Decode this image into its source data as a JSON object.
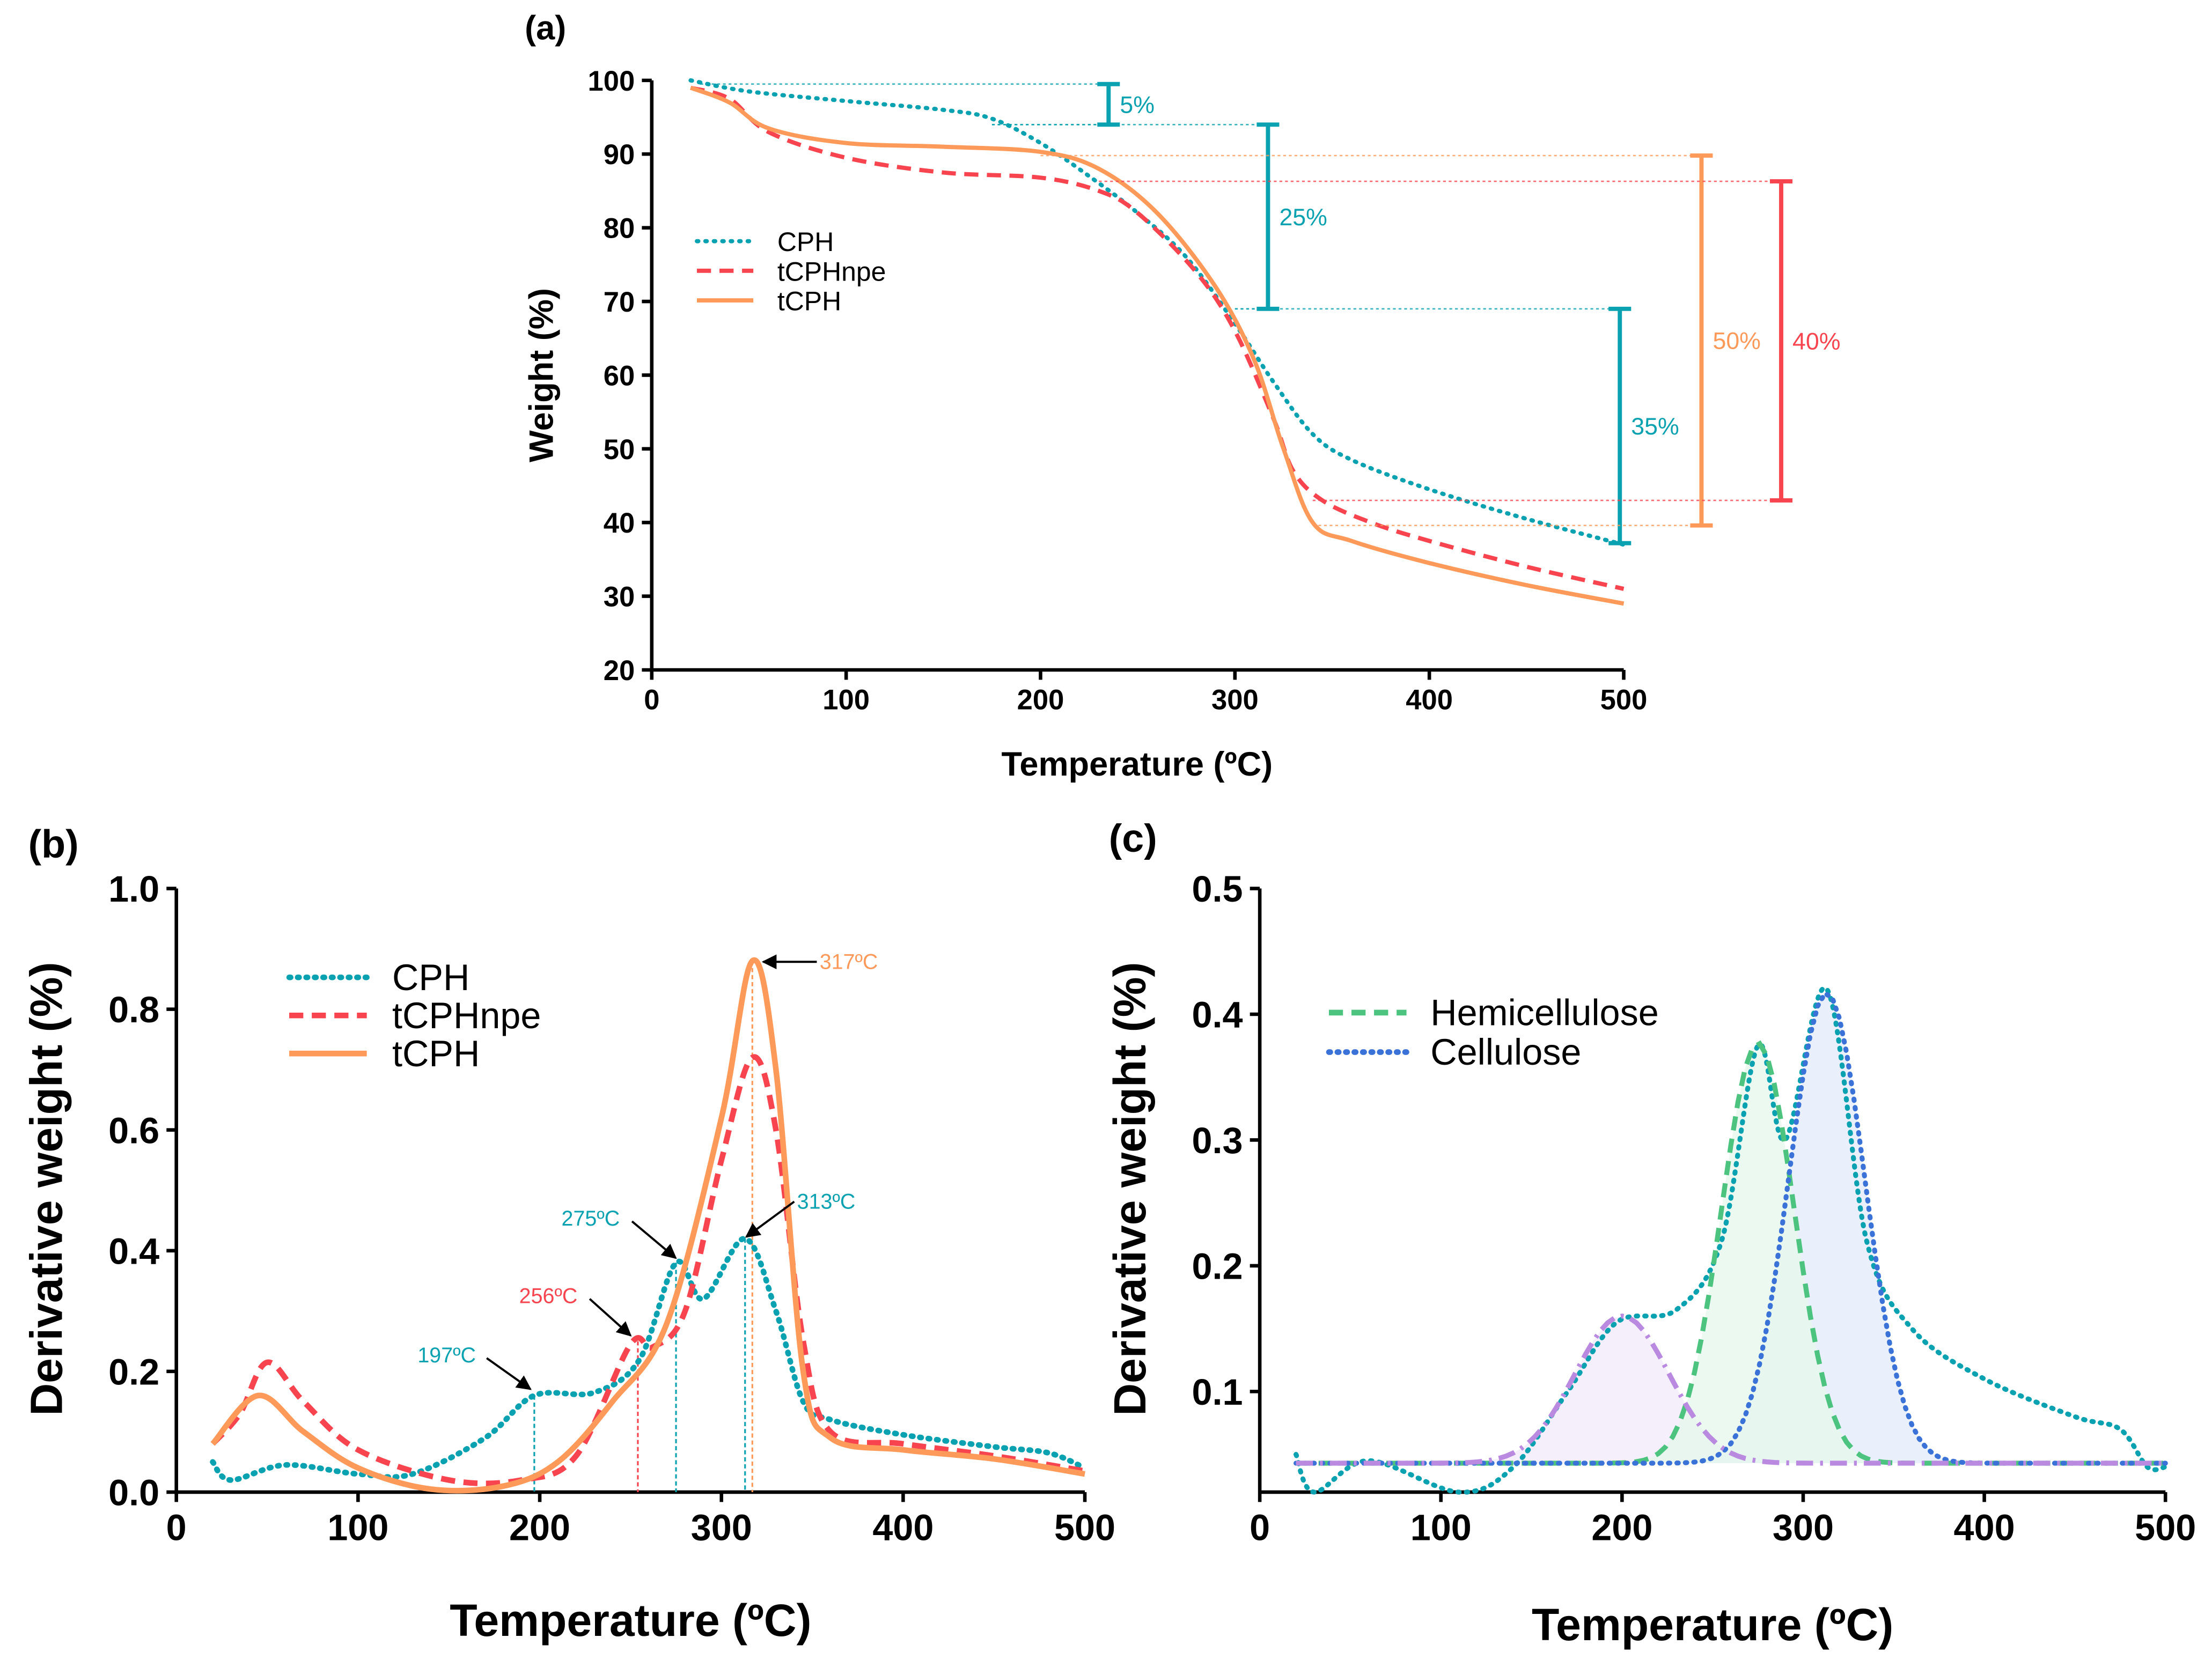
{
  "colors": {
    "cph": "#0aa2b0",
    "tcphnpe": "#f7444e",
    "tcph": "#fd9a5a",
    "hemi": "#4cc47f",
    "cell": "#3a72d8",
    "lignin": "#b98ae0"
  },
  "chart_data": [
    {
      "panel": "(a)",
      "type": "line",
      "xlabel": "Temperature (ºC)",
      "ylabel": "Weight (%)",
      "xlim": [
        0,
        500
      ],
      "ylim": [
        20,
        100
      ],
      "xticks": [
        0,
        100,
        200,
        300,
        400,
        500
      ],
      "yticks": [
        20,
        30,
        40,
        50,
        60,
        70,
        80,
        90,
        100
      ],
      "legend_position": "center-left",
      "series": [
        {
          "name": "CPH",
          "style": "dotted",
          "color_key": "cph",
          "x": [
            20,
            50,
            100,
            150,
            175,
            200,
            225,
            250,
            275,
            300,
            320,
            340,
            360,
            400,
            450,
            500
          ],
          "y": [
            100,
            98.5,
            97.2,
            96,
            94.8,
            91.5,
            87,
            82,
            76,
            67,
            59,
            52,
            48.5,
            44.5,
            40.5,
            37
          ]
        },
        {
          "name": "tCPHnpe",
          "style": "dashed",
          "color_key": "tcphnpe",
          "x": [
            20,
            40,
            60,
            100,
            150,
            200,
            230,
            250,
            280,
            300,
            320,
            330,
            345,
            370,
            400,
            450,
            500
          ],
          "y": [
            99,
            97.5,
            93,
            89.5,
            87.5,
            86.8,
            85,
            82,
            74,
            66,
            54,
            47,
            43,
            40,
            37.5,
            34,
            31
          ]
        },
        {
          "name": "tCPH",
          "style": "solid",
          "color_key": "tcph",
          "x": [
            20,
            40,
            60,
            100,
            150,
            200,
            230,
            260,
            290,
            310,
            325,
            340,
            360,
            400,
            450,
            500
          ],
          "y": [
            99,
            97,
            93.5,
            91.5,
            91,
            90.3,
            88,
            82,
            72,
            62,
            50,
            40,
            37.5,
            34.5,
            31.5,
            29
          ]
        }
      ],
      "annotations": [
        {
          "text": "5%",
          "color_key": "cph",
          "x": 235,
          "y_from": 99.5,
          "y_to": 94,
          "guide_from": [
            25,
            175
          ]
        },
        {
          "text": "25%",
          "color_key": "cph",
          "x": 317,
          "y_from": 94,
          "y_to": 69,
          "guide_from": [
            175,
            300
          ]
        },
        {
          "text": "35%",
          "color_key": "cph",
          "x": 498,
          "y_from": 69,
          "y_to": 37.2,
          "guide_from": [
            300,
            498
          ]
        },
        {
          "text": "50%",
          "color_key": "tcph",
          "x": 540,
          "y_from": 89.8,
          "y_to": 39.6,
          "guide_from": [
            200,
            340
          ]
        },
        {
          "text": "40%",
          "color_key": "tcphnpe",
          "x": 581,
          "y_from": 86.3,
          "y_to": 43,
          "guide_from": [
            230,
            340
          ]
        }
      ]
    },
    {
      "panel": "(b)",
      "type": "line",
      "xlabel": "Temperature (ºC)",
      "ylabel": "Derivative weight (%)",
      "xlim": [
        0,
        500
      ],
      "ylim": [
        0,
        1.0
      ],
      "xticks": [
        0,
        100,
        200,
        300,
        400,
        500
      ],
      "yticks": [
        "0.0",
        "0.2",
        "0.4",
        "0.6",
        "0.8",
        "1.0"
      ],
      "legend_position": "top-left",
      "series": [
        {
          "name": "CPH",
          "style": "dotted",
          "color_key": "cph",
          "x": [
            20,
            30,
            60,
            100,
            130,
            170,
            197,
            230,
            255,
            275,
            290,
            313,
            330,
            345,
            360,
            400,
            450,
            480,
            500
          ],
          "y": [
            0.05,
            0.02,
            0.045,
            0.03,
            0.03,
            0.09,
            0.16,
            0.165,
            0.22,
            0.38,
            0.32,
            0.42,
            0.3,
            0.15,
            0.12,
            0.095,
            0.075,
            0.065,
            0.04
          ]
        },
        {
          "name": "tCPHnpe",
          "style": "dashed",
          "color_key": "tcphnpe",
          "x": [
            20,
            35,
            50,
            70,
            100,
            150,
            190,
            220,
            250,
            262,
            280,
            300,
            317,
            330,
            345,
            360,
            400,
            450,
            500
          ],
          "y": [
            0.08,
            0.13,
            0.215,
            0.15,
            0.07,
            0.02,
            0.02,
            0.06,
            0.245,
            0.24,
            0.3,
            0.55,
            0.72,
            0.6,
            0.25,
            0.1,
            0.08,
            0.06,
            0.035
          ]
        },
        {
          "name": "tCPH",
          "style": "solid",
          "color_key": "tcph",
          "x": [
            20,
            45,
            70,
            100,
            140,
            180,
            210,
            240,
            270,
            300,
            317,
            330,
            345,
            360,
            400,
            450,
            500
          ],
          "y": [
            0.08,
            0.16,
            0.1,
            0.04,
            0.005,
            0.01,
            0.05,
            0.15,
            0.28,
            0.62,
            0.88,
            0.7,
            0.2,
            0.09,
            0.07,
            0.055,
            0.03
          ]
        }
      ],
      "annotations": [
        {
          "text": "197ºC",
          "color_key": "cph",
          "x": 197,
          "y": 0.16
        },
        {
          "text": "256ºC",
          "color_key": "tcphnpe",
          "x": 254,
          "y": 0.25
        },
        {
          "text": "275ºC",
          "color_key": "cph",
          "x": 275,
          "y": 0.38
        },
        {
          "text": "313ºC",
          "color_key": "cph",
          "x": 313,
          "y": 0.42
        },
        {
          "text": "317ºC",
          "color_key": "tcph",
          "x": 317,
          "y": 0.88
        }
      ]
    },
    {
      "panel": "(c)",
      "type": "area",
      "xlabel": "Temperature (ºC)",
      "ylabel": "Derivative weight (%)",
      "xlim": [
        0,
        500
      ],
      "ylim": [
        0.02,
        0.5
      ],
      "xticks": [
        0,
        100,
        200,
        300,
        400,
        500
      ],
      "yticks": [
        "0.1",
        "0.2",
        "0.3",
        "0.4",
        "0.5"
      ],
      "legend_position": "top-left",
      "baseline": 0.043,
      "measured": {
        "style": "dotted",
        "color_key": "cph",
        "x": [
          20,
          30,
          60,
          110,
          140,
          170,
          197,
          230,
          255,
          275,
          290,
          313,
          335,
          360,
          400,
          450,
          475,
          490,
          500
        ],
        "y": [
          0.05,
          0.02,
          0.045,
          0.02,
          0.04,
          0.1,
          0.155,
          0.165,
          0.22,
          0.375,
          0.3,
          0.42,
          0.22,
          0.15,
          0.11,
          0.08,
          0.07,
          0.04,
          0.04
        ]
      },
      "peaks": [
        {
          "name": "Hemicellulose",
          "style": "dashed",
          "color_key": "hemi",
          "center": 275,
          "peak": 0.377,
          "width": 20
        },
        {
          "name": "Cellulose",
          "style": "dotted",
          "color_key": "cell",
          "center": 313,
          "peak": 0.417,
          "width": 21
        },
        {
          "name": "",
          "style": "dashdot",
          "color_key": "lignin",
          "center": 200,
          "peak": 0.16,
          "width": 26
        }
      ]
    }
  ]
}
